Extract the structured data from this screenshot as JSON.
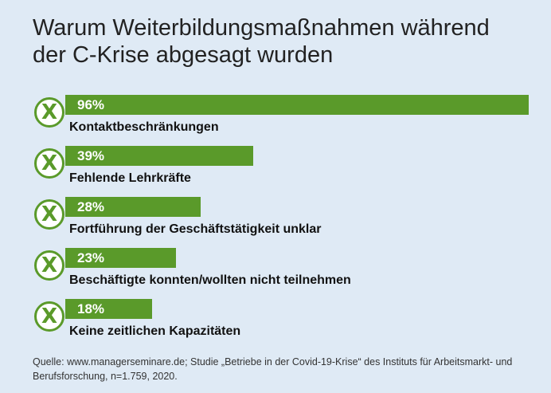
{
  "colors": {
    "background": "#dfeaf5",
    "bar": "#5a9a2a",
    "icon_ring": "#5a9a2a"
  },
  "icon": {
    "name": "x-circle-icon",
    "glyph": "X"
  },
  "chart_data": {
    "type": "bar",
    "orientation": "horizontal",
    "title_lines": [
      "Warum Weiterbildungsmaßnahmen während",
      "der C-Krise abgesagt wurden"
    ],
    "categories": [
      "Kontaktbeschränkungen",
      "Fehlende Lehrkräfte",
      "Fortführung der Geschäftstätigkeit unklar",
      "Beschäftigte konnten/wollten nicht teilnehmen",
      "Keine zeitlichen Kapazitäten"
    ],
    "values": [
      96,
      39,
      28,
      23,
      18
    ],
    "value_labels": [
      "96%",
      "39%",
      "28%",
      "23%",
      "18%"
    ],
    "unit": "%",
    "xlim": [
      0,
      100
    ],
    "source_lines": [
      "Quelle: www.managerseminare.de; Studie „Betriebe in der Covid-19-Krise“ des Instituts für Arbeitsmarkt- und",
      "Berufsforschung, n=1.759, 2020."
    ]
  }
}
